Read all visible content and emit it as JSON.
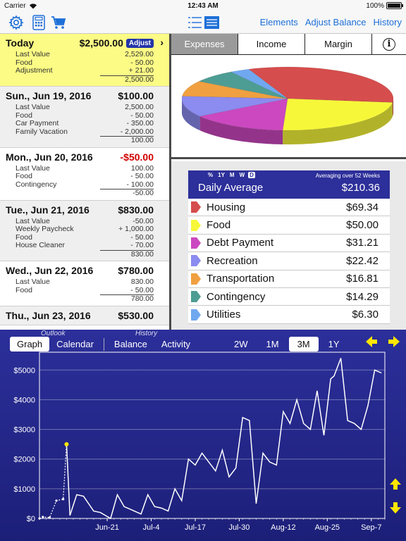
{
  "status": {
    "carrier": "Carrier",
    "time": "12:43 AM",
    "battery": "100%"
  },
  "toolbar": {
    "links": [
      "Elements",
      "Adjust Balance",
      "History"
    ]
  },
  "days": [
    {
      "title": "Today",
      "amount": "$2,500.00",
      "adjust": "Adjust",
      "style": "today",
      "lines": [
        {
          "label": "Last Value",
          "value": "2,529.00"
        },
        {
          "label": "Food",
          "value": "- 50.00"
        },
        {
          "label": "Adjustment",
          "value": "+ 21.00"
        }
      ],
      "total": "2,500.00"
    },
    {
      "title": "Sun., Jun 19, 2016",
      "amount": "$100.00",
      "style": "gray",
      "lines": [
        {
          "label": "Last Value",
          "value": "2,500.00"
        },
        {
          "label": "Food",
          "value": "- 50.00"
        },
        {
          "label": "Car Payment",
          "value": "- 350.00"
        },
        {
          "label": "Family Vacation",
          "value": "- 2,000.00"
        }
      ],
      "total": "100.00"
    },
    {
      "title": "Mon., Jun 20, 2016",
      "amount": "-$50.00",
      "negative": true,
      "style": "white",
      "lines": [
        {
          "label": "Last Value",
          "value": "100.00"
        },
        {
          "label": "Food",
          "value": "- 50.00"
        },
        {
          "label": "Contingency",
          "value": "- 100.00"
        }
      ],
      "total": "-50.00"
    },
    {
      "title": "Tue., Jun 21, 2016",
      "amount": "$830.00",
      "style": "gray",
      "lines": [
        {
          "label": "Last Value",
          "value": "-50.00"
        },
        {
          "label": "Weekly Paycheck",
          "value": "+ 1,000.00"
        },
        {
          "label": "Food",
          "value": "- 50.00"
        },
        {
          "label": "House Cleaner",
          "value": "- 70.00"
        }
      ],
      "total": "830.00"
    },
    {
      "title": "Wed., Jun 22, 2016",
      "amount": "$780.00",
      "style": "white",
      "lines": [
        {
          "label": "Last Value",
          "value": "830.00"
        },
        {
          "label": "Food",
          "value": "- 50.00"
        }
      ],
      "total": "780.00"
    },
    {
      "title": "Thu., Jun 23, 2016",
      "amount": "$530.00",
      "style": "gray",
      "lines": [],
      "total": ""
    }
  ],
  "segments": {
    "expenses": "Expenses",
    "income": "Income",
    "margin": "Margin",
    "info": "i"
  },
  "average": {
    "periods": [
      "%",
      "1Y",
      "M",
      "W",
      "D"
    ],
    "selected_period": "D",
    "over": "Averaging over 52 Weeks",
    "title": "Daily Average",
    "value": "$210.36",
    "categories": [
      {
        "name": "Housing",
        "value": "$69.34",
        "amount": 69.34,
        "color": "#d64d4d"
      },
      {
        "name": "Food",
        "value": "$50.00",
        "amount": 50.0,
        "color": "#f7f73a"
      },
      {
        "name": "Debt Payment",
        "value": "$31.21",
        "amount": 31.21,
        "color": "#cc48c0"
      },
      {
        "name": "Recreation",
        "value": "$22.42",
        "amount": 22.42,
        "color": "#8b8bf0"
      },
      {
        "name": "Transportation",
        "value": "$16.81",
        "amount": 16.81,
        "color": "#f0a040"
      },
      {
        "name": "Contingency",
        "value": "$14.29",
        "amount": 14.29,
        "color": "#4d9d94"
      },
      {
        "name": "Utilities",
        "value": "$6.30",
        "amount": 6.3,
        "color": "#70a8f0"
      }
    ]
  },
  "graph": {
    "outlook_hint": "Outlook",
    "history_hint": "History",
    "tabs": [
      "Graph",
      "Calendar",
      "Balance",
      "Activity"
    ],
    "selected_tab": "Graph",
    "ranges": [
      "2W",
      "1M",
      "3M",
      "1Y"
    ],
    "selected_range": "3M"
  },
  "chart_data": {
    "type": "line",
    "title": "",
    "xlabel": "",
    "ylabel": "",
    "ylim": [
      0,
      5600
    ],
    "yticks": [
      0,
      1000,
      2000,
      3000,
      4000,
      5000
    ],
    "ytick_labels": [
      "$0",
      "$1000",
      "$2000",
      "$3000",
      "$4000",
      "$5000"
    ],
    "xtick_labels": [
      "Jun-21",
      "Jul-4",
      "Jul-17",
      "Jul-30",
      "Aug-12",
      "Aug-25",
      "Sep-7"
    ],
    "xticks": [
      20,
      33,
      46,
      59,
      72,
      85,
      98
    ],
    "xlim": [
      0,
      102
    ],
    "history": {
      "x": [
        0,
        1,
        3,
        5,
        7,
        8
      ],
      "y": [
        0,
        50,
        30,
        600,
        650,
        2500
      ]
    },
    "outlook": {
      "x": [
        8,
        9,
        11,
        13,
        16,
        18,
        21,
        23,
        25,
        27,
        30,
        32,
        34,
        36,
        38,
        40,
        42,
        44,
        46,
        48,
        50,
        52,
        54,
        56,
        58,
        60,
        62,
        64,
        66,
        68,
        70,
        72,
        74,
        76,
        78,
        80,
        82,
        84,
        86,
        87,
        89,
        91,
        93,
        95,
        97,
        99,
        101
      ],
      "y": [
        2500,
        100,
        800,
        750,
        250,
        200,
        0,
        800,
        400,
        300,
        150,
        800,
        400,
        350,
        250,
        1000,
        600,
        2000,
        1800,
        2200,
        1900,
        1600,
        2300,
        1400,
        1700,
        3400,
        3300,
        500,
        2200,
        1900,
        1800,
        3600,
        3200,
        4000,
        3200,
        3000,
        4300,
        2800,
        4700,
        4800,
        5400,
        3300,
        3200,
        3000,
        3800,
        5000,
        4900
      ]
    }
  }
}
